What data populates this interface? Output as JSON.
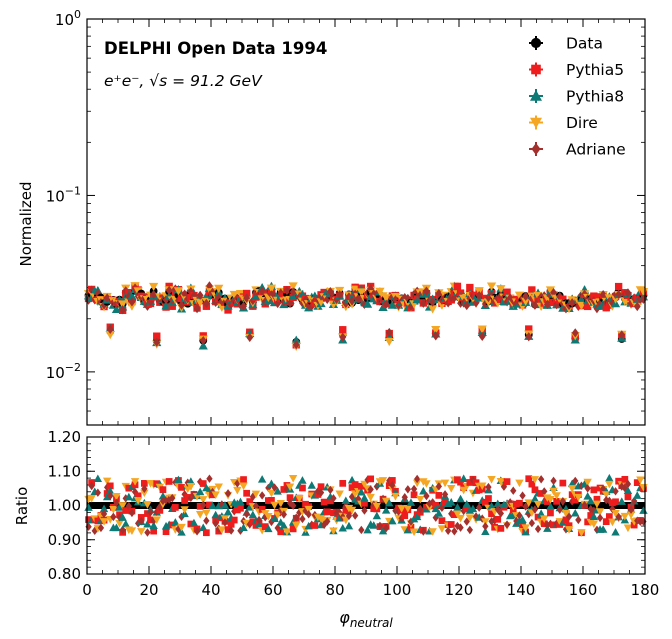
{
  "chart_data": [
    {
      "type": "scatter",
      "panel": "main",
      "title": "DELPHI Open Data 1994",
      "subtitle": "e⁺e⁻, √s = 91.2 GeV",
      "xlabel": "φ_neutral",
      "ylabel": "Normalized",
      "yscale": "log",
      "xlim": [
        0,
        180
      ],
      "ylim": [
        0.005,
        1
      ],
      "y_major_ticks": [
        {
          "value": 1,
          "base": "10",
          "exp": "0"
        },
        {
          "value": 0.1,
          "base": "10",
          "exp": "−1"
        },
        {
          "value": 0.01,
          "base": "10",
          "exp": "−2"
        }
      ],
      "legend_location": "top-right",
      "series": [
        {
          "name": "Data",
          "color": "#000000",
          "marker": "circle"
        },
        {
          "name": "Pythia5",
          "color": "#ee1c1c",
          "marker": "square"
        },
        {
          "name": "Pythia8",
          "color": "#0e7a76",
          "marker": "triangle-up"
        },
        {
          "name": "Dire",
          "color": "#f5a623",
          "marker": "triangle-down"
        },
        {
          "name": "Adriane",
          "color": "#a4302e",
          "marker": "diamond"
        }
      ],
      "bin_width_deg": 1,
      "baseline_value": 0.0265,
      "dip_bins_deg": [
        7.5,
        22.5,
        37.5,
        52.5,
        67.5,
        82.5,
        97.5,
        112.5,
        127.5,
        142.5,
        157.5,
        172.5
      ],
      "dip_value": 0.0158
    },
    {
      "type": "scatter",
      "panel": "ratio",
      "xlabel": "φ_neutral",
      "ylabel": "Ratio",
      "xlim": [
        0,
        180
      ],
      "ylim": [
        0.8,
        1.2
      ],
      "x_ticks": [
        0,
        20,
        40,
        60,
        80,
        100,
        120,
        140,
        160,
        180
      ],
      "y_ticks": [
        "0.80",
        "0.90",
        "1.00",
        "1.10",
        "1.20"
      ],
      "reference_value": 1.0
    }
  ]
}
